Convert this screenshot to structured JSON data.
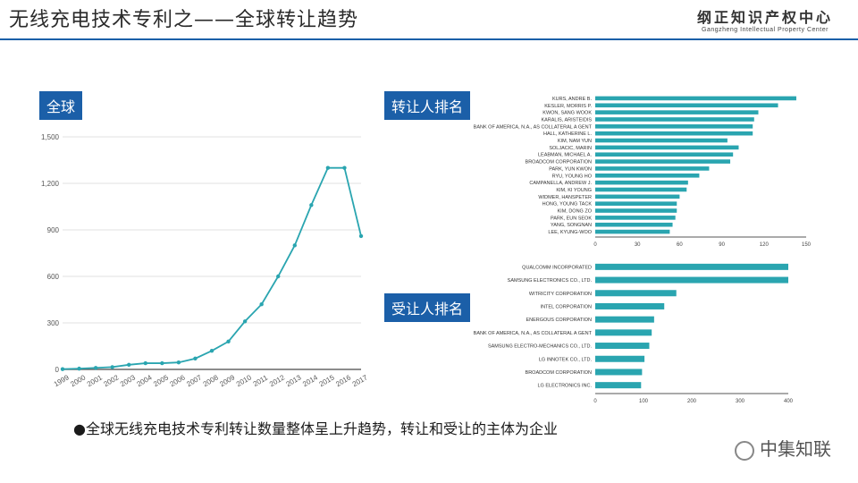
{
  "header": {
    "title": "无线充电技术专利之——全球转让趋势",
    "logo_main": "纲正知识产权中心",
    "logo_sub": "Gangzheng Intellectual Property Center"
  },
  "labels": {
    "global": "全球",
    "assignor_rank": "转让人排名",
    "assignee_rank": "受让人排名"
  },
  "summary": "●全球无线充电技术专利转让数量整体呈上升趋势，转让和受让的主体为企业",
  "watermark": "中集知联",
  "colors": {
    "accent": "#1b5fa8",
    "line": "#2aa5b0",
    "bar": "#2aa5b0"
  },
  "chart_data": [
    {
      "type": "line",
      "categories": [
        "1999",
        "2000",
        "2001",
        "2002",
        "2003",
        "2004",
        "2005",
        "2006",
        "2007",
        "2008",
        "2009",
        "2010",
        "2011",
        "2012",
        "2013",
        "2014",
        "2015",
        "2016",
        "2017"
      ],
      "values": [
        2,
        5,
        10,
        15,
        30,
        40,
        40,
        45,
        70,
        120,
        180,
        310,
        420,
        600,
        800,
        1060,
        1300,
        1300,
        860
      ],
      "ylim": [
        0,
        1500
      ],
      "yticks": [
        "0",
        "300",
        "600",
        "900",
        "1,200",
        "1,500"
      ],
      "ytick_values": [
        0,
        300,
        600,
        900,
        1200,
        1500
      ],
      "grid": true
    },
    {
      "type": "bar",
      "orientation": "horizontal",
      "categories": [
        "KURS, ANDRE B.",
        "KESLER, MORRIS P.",
        "KWON, SANG WOOK",
        "KARALIS, ARISTEIDIS",
        "BANK OF AMERICA, N.A., AS COLLATERAL A GENT",
        "HALL, KATHERINE L.",
        "KIM, NAM YUN",
        "SOLJACIC, MARIN",
        "LEABMAN, MICHAEL A.",
        "BROADCOM CORPORATION",
        "PARK, YUN KWON",
        "RYU, YOUNG HO",
        "CAMPANELLA, ANDREW J.",
        "KIM, KI YOUNG",
        "WIDMER, HANSPETER",
        "HONG, YOUNG TACK",
        "KIM, DONG ZO",
        "PARK, EUN SEOK",
        "YANG, SONGNAN",
        "LEE, KYUNG-WOO"
      ],
      "values": [
        143,
        130,
        116,
        113,
        112,
        112,
        94,
        102,
        98,
        96,
        81,
        74,
        66,
        65,
        60,
        58,
        58,
        57,
        55,
        53
      ],
      "xlim": [
        0,
        150
      ],
      "xticks": [
        "0",
        "30",
        "60",
        "90",
        "120",
        "150"
      ],
      "xtick_values": [
        0,
        30,
        60,
        90,
        120,
        150
      ]
    },
    {
      "type": "bar",
      "orientation": "horizontal",
      "categories": [
        "QUALCOMM INCORPORATED",
        "SAMSUNG ELECTRONICS CO., LTD.",
        "WITRICITY CORPORATION",
        "INTEL CORPORATION",
        "ENERGOUS CORPORATION",
        "BANK OF AMERICA, N.A., AS COLLATERAL A GENT",
        "SAMSUNG ELECTRO-MECHANICS CO., LTD.",
        "LG INNOTEK CO., LTD.",
        "BROADCOM CORPORATION",
        "LG ELECTRONICS INC."
      ],
      "values": [
        400,
        400,
        168,
        143,
        122,
        117,
        112,
        102,
        97,
        95
      ],
      "xlim": [
        0,
        400
      ],
      "xticks": [
        "0",
        "100",
        "200",
        "300",
        "400"
      ],
      "xtick_values": [
        0,
        100,
        200,
        300,
        400
      ]
    }
  ]
}
